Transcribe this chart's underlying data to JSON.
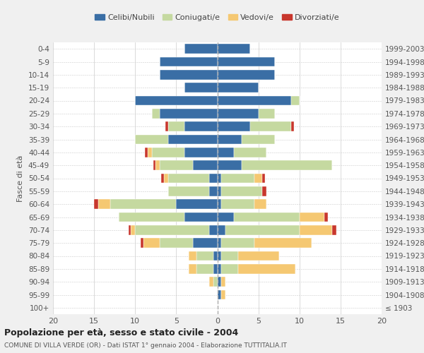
{
  "age_groups": [
    "100+",
    "95-99",
    "90-94",
    "85-89",
    "80-84",
    "75-79",
    "70-74",
    "65-69",
    "60-64",
    "55-59",
    "50-54",
    "45-49",
    "40-44",
    "35-39",
    "30-34",
    "25-29",
    "20-24",
    "15-19",
    "10-14",
    "5-9",
    "0-4"
  ],
  "birth_years": [
    "≤ 1903",
    "1904-1908",
    "1909-1913",
    "1914-1918",
    "1919-1923",
    "1924-1928",
    "1929-1933",
    "1934-1938",
    "1939-1943",
    "1944-1948",
    "1949-1953",
    "1954-1958",
    "1959-1963",
    "1964-1968",
    "1969-1973",
    "1974-1978",
    "1979-1983",
    "1984-1988",
    "1989-1993",
    "1994-1998",
    "1999-2003"
  ],
  "colors": {
    "celibe": "#3a6ea5",
    "coniugato": "#c5d9a0",
    "vedovo": "#f5c872",
    "divorziato": "#c8372d"
  },
  "maschi": {
    "celibe": [
      0,
      0,
      0,
      0.5,
      0.5,
      3,
      1,
      4,
      5,
      1,
      1,
      3,
      4,
      6,
      4,
      7,
      10,
      4,
      7,
      7,
      4
    ],
    "coniugato": [
      0,
      0,
      0.5,
      2,
      2,
      4,
      9,
      8,
      8,
      5,
      5,
      4,
      4,
      4,
      2,
      1,
      0,
      0,
      0,
      0,
      0
    ],
    "vedovo": [
      0,
      0,
      0.5,
      1,
      1,
      2,
      0.5,
      0,
      1.5,
      0,
      0.5,
      0.5,
      0.5,
      0,
      0,
      0,
      0,
      0,
      0,
      0,
      0
    ],
    "divorziato": [
      0,
      0,
      0,
      0,
      0,
      0.3,
      0.3,
      0,
      0.5,
      0,
      0.3,
      0.3,
      0.3,
      0,
      0.3,
      0,
      0,
      0,
      0,
      0,
      0
    ]
  },
  "femmine": {
    "nubile": [
      0,
      0.5,
      0.5,
      0.5,
      0.5,
      0.5,
      1,
      2,
      0.5,
      0.5,
      0.5,
      3,
      2,
      3,
      4,
      5,
      9,
      5,
      7,
      7,
      4
    ],
    "coniugata": [
      0,
      0,
      0,
      2,
      2,
      4,
      9,
      8,
      4,
      5,
      4,
      11,
      4,
      4,
      5,
      2,
      1,
      0,
      0,
      0,
      0
    ],
    "vedova": [
      0,
      0.5,
      0.5,
      7,
      5,
      7,
      4,
      3,
      1.5,
      0,
      1,
      0,
      0,
      0,
      0,
      0,
      0,
      0,
      0,
      0,
      0
    ],
    "divorziata": [
      0,
      0,
      0,
      0,
      0,
      0,
      0.5,
      0.5,
      0,
      0.5,
      0.3,
      0,
      0,
      0,
      0.3,
      0,
      0,
      0,
      0,
      0,
      0
    ]
  },
  "xlim": 20,
  "title_main": "Popolazione per età, sesso e stato civile - 2004",
  "title_sub": "COMUNE DI VILLA VERDE (OR) - Dati ISTAT 1° gennaio 2004 - Elaborazione TUTTITALIA.IT",
  "ylabel": "Fasce di età",
  "legend_labels": [
    "Celibi/Nubili",
    "Coniugati/e",
    "Vedovi/e",
    "Divorziati/e"
  ],
  "background_color": "#f0f0f0",
  "plot_bg": "#ffffff"
}
